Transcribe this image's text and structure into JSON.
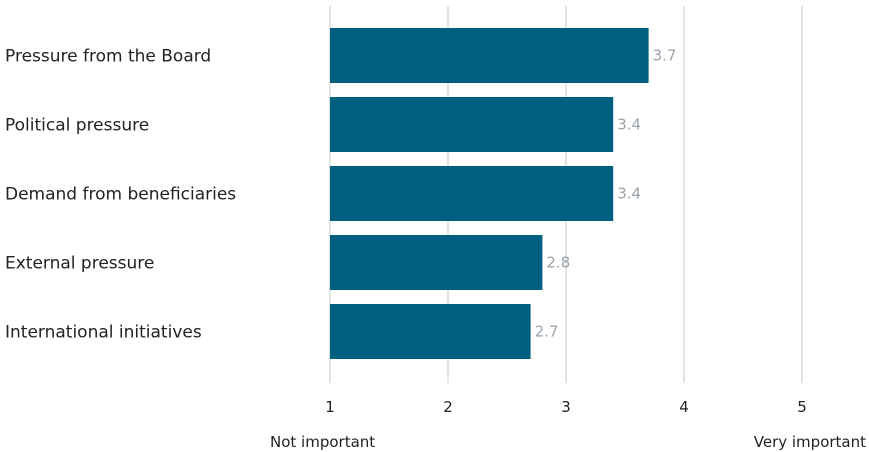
{
  "chart_data": {
    "type": "bar",
    "orientation": "horizontal",
    "categories": [
      "Pressure from the Board",
      "Political pressure",
      "Demand from beneficiaries",
      "External pressure",
      "International initiatives"
    ],
    "values": [
      3.7,
      3.4,
      3.4,
      2.8,
      2.7
    ],
    "value_labels": [
      "3.7",
      "3.4",
      "3.4",
      "2.8",
      "2.7"
    ],
    "xlim": [
      1,
      5
    ],
    "xticks": [
      1,
      2,
      3,
      4,
      5
    ],
    "xtick_labels": [
      "1",
      "2",
      "3",
      "4",
      "5"
    ],
    "scale_low_label": "Not important",
    "scale_high_label": "Very important",
    "grid": "vertical",
    "legend": "none",
    "bar_color": "#005f7e",
    "value_label_color": "#9aa3ab",
    "grid_color": "#c8c8c8",
    "text_color": "#222222"
  }
}
